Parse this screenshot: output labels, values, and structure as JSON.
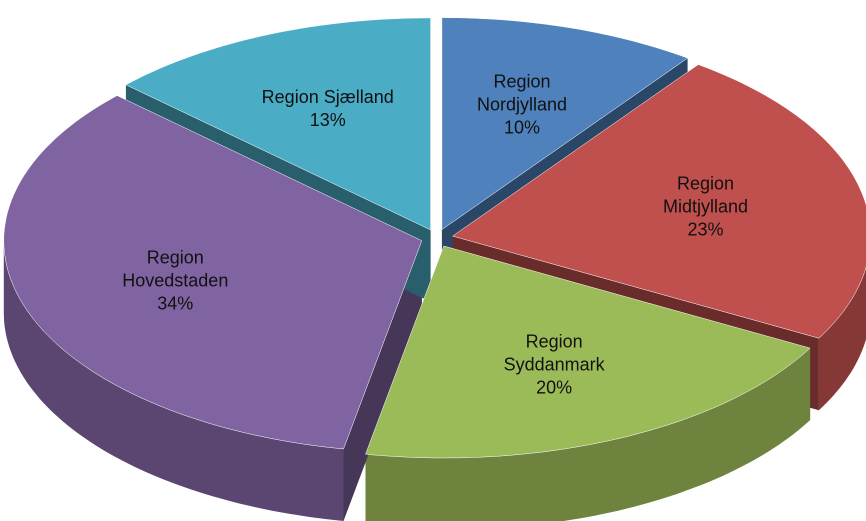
{
  "chart_data": {
    "type": "pie",
    "three_d": true,
    "exploded": true,
    "categories": [
      "Region Nordjylland",
      "Region Midtjylland",
      "Region Syddanmark",
      "Region Hovedstaden",
      "Region Sjælland"
    ],
    "values": [
      10,
      23,
      20,
      34,
      13
    ],
    "value_labels": [
      "10%",
      "23%",
      "20%",
      "34%",
      "13%"
    ],
    "colors": [
      "#4f81bd",
      "#c0504d",
      "#9bbb59",
      "#8064a2",
      "#4bacc6"
    ]
  }
}
